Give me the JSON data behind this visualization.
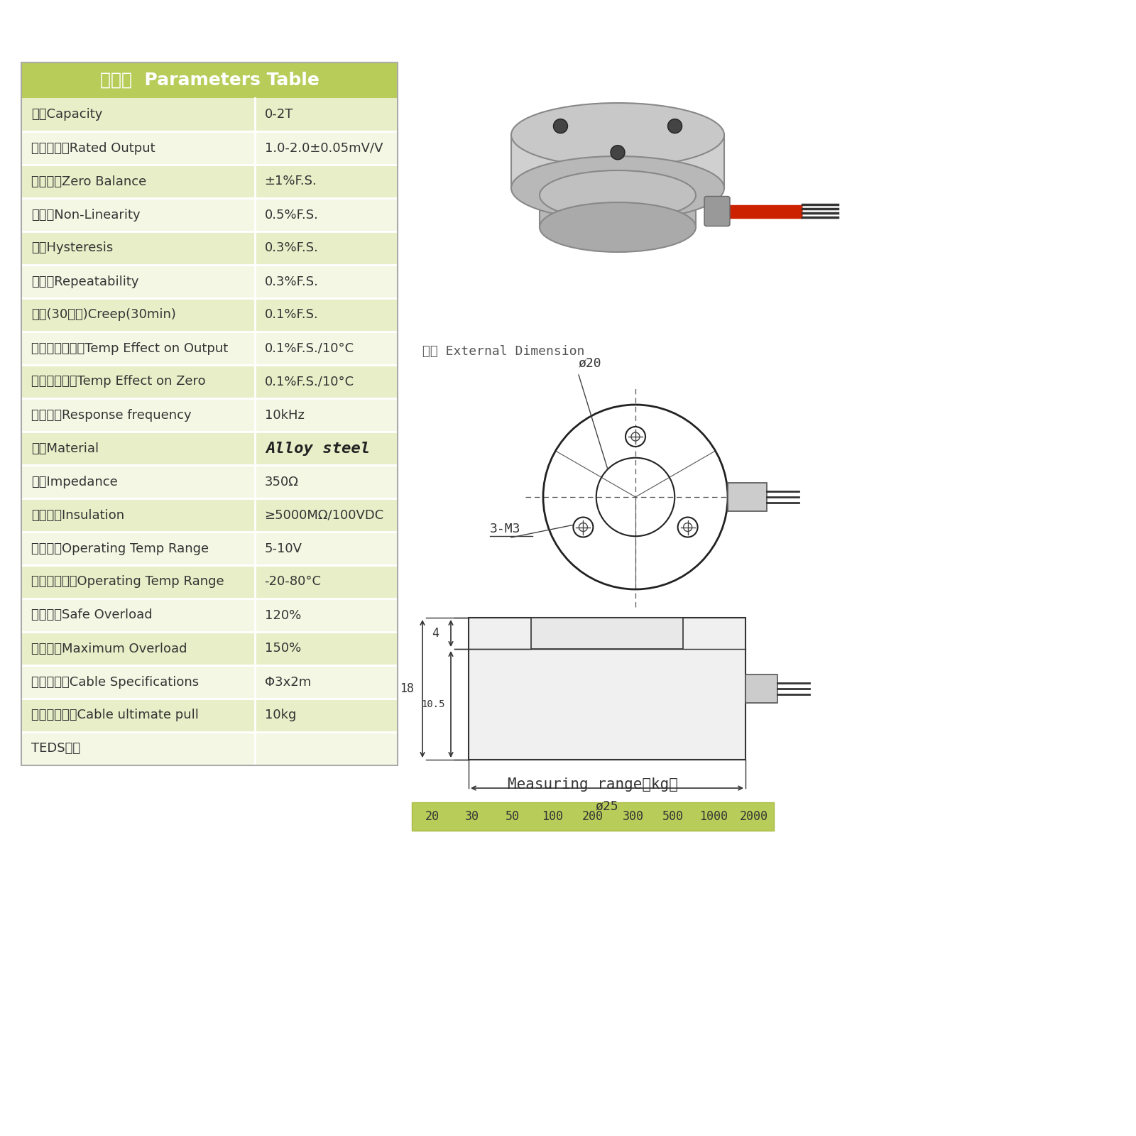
{
  "title": "参数表  Parameters Table",
  "title_bg": "#b8cc5a",
  "row_odd_bg": "#e8efc8",
  "row_even_bg": "#f4f7e4",
  "rows": [
    [
      "量程Capacity",
      "0-2T"
    ],
    [
      "输出灵敏度Rated Output",
      "1.0-2.0±0.05mV/V"
    ],
    [
      "零点输出Zero Balance",
      "±1%F.S."
    ],
    [
      "非线性Non-Linearity",
      "0.5%F.S."
    ],
    [
      "滔后Hysteresis",
      "0.3%F.S."
    ],
    [
      "重复性Repeatability",
      "0.3%F.S."
    ],
    [
      "蟠变(30分钟)Creep(30min)",
      "0.1%F.S."
    ],
    [
      "温度灵敏度漂移Temp Effect on Output",
      "0.1%F.S./10°C"
    ],
    [
      "零点温度漂移Temp Effect on Zero",
      "0.1%F.S./10°C"
    ],
    [
      "响应频率Response frequency",
      "10kHz"
    ],
    [
      "材质Material",
      "Alloy steel"
    ],
    [
      "阻抗Impedance",
      "350Ω"
    ],
    [
      "绵缘电阵Insulation",
      "≥5000MΩ/100VDC"
    ],
    [
      "使用电压Operating Temp Range",
      "5-10V"
    ],
    [
      "工作温度范围Operating Temp Range",
      "-20-80°C"
    ],
    [
      "安全过载Safe Overload",
      "120%"
    ],
    [
      "极限过载Maximum Overload",
      "150%"
    ],
    [
      "电罆线规格Cable Specifications",
      "Φ3x2m"
    ],
    [
      "线罆极限拉力Cable ultimate pull",
      "10kg"
    ],
    [
      "TEDS可选",
      ""
    ]
  ],
  "material_row_idx": 10,
  "ext_dim_label": "尺寸 External Dimension",
  "meas_range_label": "Measuring range（kg）",
  "meas_range_values": [
    "20",
    "30",
    "50",
    "100",
    "200",
    "300",
    "500",
    "1000",
    "2000"
  ],
  "meas_range_bg": "#b8cc5a",
  "dim_labels": {
    "phi20": "ø20",
    "three_m3": "3-M3",
    "dim4": "4",
    "dim18": "18",
    "dim10_5": "10.5",
    "phi25": "ø25"
  }
}
